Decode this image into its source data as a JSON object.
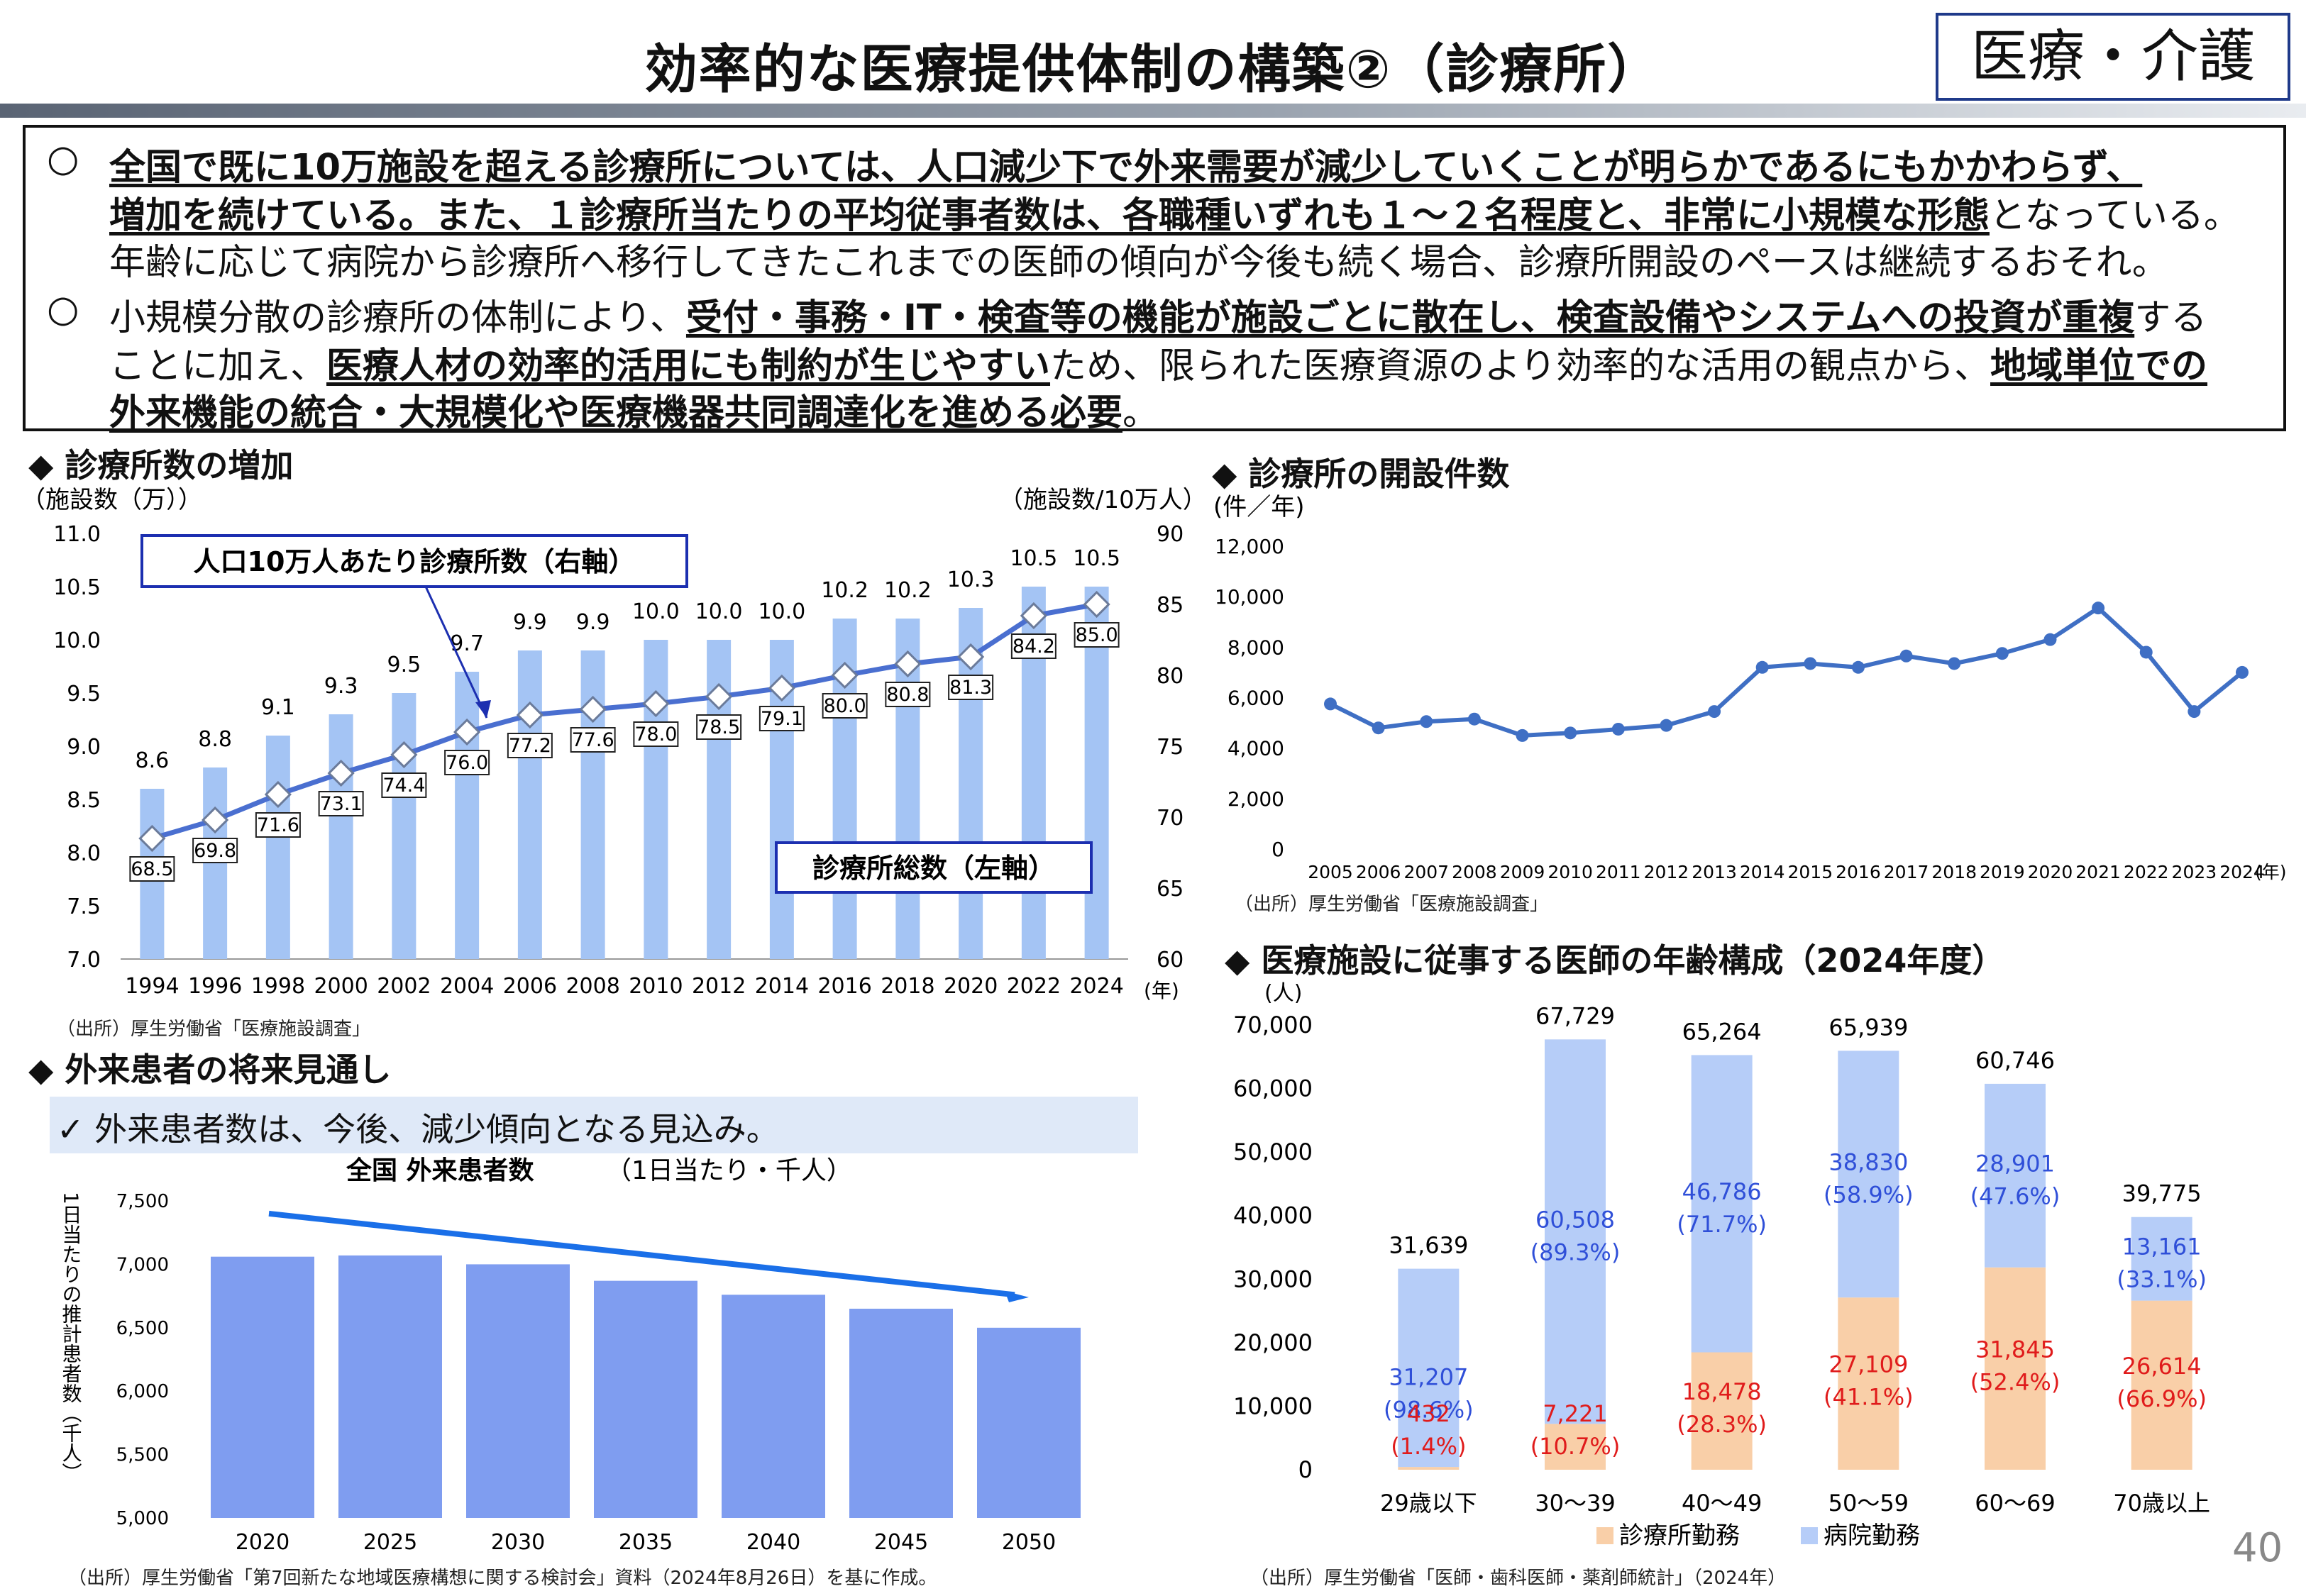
{
  "header": {
    "title": "効率的な医療提供体制の構築②（診療所）",
    "category": "医療・介護",
    "page_number": "40"
  },
  "summary": {
    "p1": {
      "bullet": "○",
      "l1": "全国で既に10万施設を超える診療所については、人口減少下で外来需要が減少していくことが明らかであるにもかかわらず、",
      "l2_bold": "増加を続けている。また、１診療所当たりの平均従事者数は、各職種いずれも１～２名程度と、非常に小規模な形態",
      "l2_rest": "となっている。",
      "l3": "年齢に応じて病院から診療所へ移行してきたこれまでの医師の傾向が今後も続く場合、診療所開設のペースは継続するおそれ。"
    },
    "p2": {
      "bullet": "○",
      "l1_a": "小規模分散の診療所の体制により、",
      "l1_b": "受付・事務・IT・検査等の機能が施設ごとに散在し、検査設備やシステムへの投資が重複",
      "l1_c": "する",
      "l2_a": "ことに加え、",
      "l2_b": "医療人材の効率的活用にも制約が生じやすい",
      "l2_c": "ため、限られた医療資源のより効率的な活用の観点から、",
      "l2_d": "地域単位での",
      "l3_b": "外来機能の統合・大規模化や医療機器共同調達化を進める必要",
      "l3_c": "。"
    }
  },
  "clinics_chart": {
    "section_title": "◆ 診療所数の増加",
    "left_axis_unit": "（施設数（万））",
    "right_axis_unit": "（施設数/10万人）",
    "x_unit": "(年)",
    "line_callout": "人口10万人あたり診療所数（右軸）",
    "bar_callout": "診療所総数（左軸）",
    "source": "（出所）厚生労働省「医療施設調査」",
    "left_ticks": [
      "11.0",
      "10.5",
      "10.0",
      "9.5",
      "9.0",
      "8.5",
      "8.0",
      "7.5",
      "7.0"
    ],
    "right_ticks": [
      "90",
      "85",
      "80",
      "75",
      "70",
      "65",
      "60"
    ]
  },
  "openings_chart": {
    "section_title": "◆ 診療所の開設件数",
    "y_unit": "(件／年)",
    "x_unit": "(年)",
    "source": "（出所）厚生労働省「医療施設調査」",
    "y_ticks": [
      "12,000",
      "10,000",
      "8,000",
      "6,000",
      "4,000",
      "2,000",
      "0"
    ]
  },
  "outpatient_chart": {
    "section_title": "◆ 外来患者の将来見通し",
    "note": "✓ 外来患者数は、今後、減少傾向となる見込み。",
    "chart_title_a": "全国 外来患者数",
    "chart_title_b": "（1日当たり・千人）",
    "y_label": "1日当たりの推計患者数（千人）",
    "source": "（出所）厚生労働省「第7回新たな地域医療構想に関する検討会」資料（2024年8月26日）を基に作成。",
    "y_ticks": [
      "7,500",
      "7,000",
      "6,500",
      "6,000",
      "5,500",
      "5,000"
    ]
  },
  "doctors_chart": {
    "section_title": "◆ 医療施設に従事する医師の年齢構成（2024年度）",
    "y_unit": "(人)",
    "legend_clinic": "診療所勤務",
    "legend_hospital": "病院勤務",
    "source": "（出所）厚生労働省「医師・歯科医師・薬剤師統計」（2024年）",
    "y_ticks": [
      "70,000",
      "60,000",
      "50,000",
      "40,000",
      "30,000",
      "20,000",
      "10,000",
      "0"
    ]
  },
  "chart_data": [
    {
      "type": "bar",
      "title": "診療所数の増加",
      "categories": [
        "1994",
        "1996",
        "1998",
        "2000",
        "2002",
        "2004",
        "2006",
        "2008",
        "2010",
        "2012",
        "2014",
        "2016",
        "2018",
        "2020",
        "2022",
        "2024"
      ],
      "series": [
        {
          "name": "診療所総数（左軸）",
          "axis": "left",
          "values": [
            8.6,
            8.8,
            9.1,
            9.3,
            9.5,
            9.7,
            9.9,
            9.9,
            10.0,
            10.0,
            10.0,
            10.2,
            10.2,
            10.3,
            10.5,
            10.5
          ],
          "color": "#a4c4f4"
        },
        {
          "name": "人口10万人あたり診療所数（右軸）",
          "axis": "right",
          "type": "line",
          "values": [
            68.5,
            69.8,
            71.6,
            73.1,
            74.4,
            76.0,
            77.2,
            77.6,
            78.0,
            78.5,
            79.1,
            80.0,
            80.8,
            81.3,
            84.2,
            85.0
          ],
          "color": "#4a6fd0"
        }
      ],
      "ylim_left": [
        7.0,
        11.0
      ],
      "ylim_right": [
        60,
        90
      ]
    },
    {
      "type": "line",
      "title": "診療所の開設件数",
      "x": [
        "2005",
        "2006",
        "2007",
        "2008",
        "2009",
        "2010",
        "2011",
        "2012",
        "2013",
        "2014",
        "2015",
        "2016",
        "2017",
        "2018",
        "2019",
        "2020",
        "2021",
        "2022",
        "2023",
        "2024"
      ],
      "values": [
        5750,
        4800,
        5050,
        5150,
        4500,
        4600,
        4750,
        4900,
        5450,
        7200,
        7350,
        7200,
        7650,
        7350,
        7750,
        8300,
        9550,
        7800,
        5450,
        7000
      ],
      "ylim": [
        0,
        12000
      ],
      "color": "#3f6fc4"
    },
    {
      "type": "bar",
      "title": "全国 外来患者数",
      "categories": [
        "2020",
        "2025",
        "2030",
        "2035",
        "2040",
        "2045",
        "2050"
      ],
      "values": [
        7060,
        7070,
        7000,
        6870,
        6760,
        6650,
        6500
      ],
      "ylim": [
        5000,
        7500
      ],
      "color": "#7f9df0",
      "trend_arrow": true
    },
    {
      "type": "bar",
      "stacked": true,
      "title": "医療施設に従事する医師の年齢構成（2024年度）",
      "categories": [
        "29歳以下",
        "30～39",
        "40～49",
        "50～59",
        "60～69",
        "70歳以上"
      ],
      "totals": [
        "31,639",
        "67,729",
        "65,264",
        "65,939",
        "60,746",
        "39,775"
      ],
      "series": [
        {
          "name": "診療所勤務",
          "values": [
            432,
            7221,
            18478,
            27109,
            31845,
            26614
          ],
          "labels": [
            "432",
            "7,221",
            "18,478",
            "27,109",
            "31,845",
            "26,614"
          ],
          "pct": [
            "(1.4%)",
            "(10.7%)",
            "(28.3%)",
            "(41.1%)",
            "(52.4%)",
            "(66.9%)"
          ],
          "color": "#f9cfa8",
          "label_color": "#e01b1b"
        },
        {
          "name": "病院勤務",
          "values": [
            31207,
            60508,
            46786,
            38830,
            28901,
            13161
          ],
          "labels": [
            "31,207",
            "60,508",
            "46,786",
            "38,830",
            "28,901",
            "13,161"
          ],
          "pct": [
            "(98.6%)",
            "(89.3%)",
            "(71.7%)",
            "(58.9%)",
            "(47.6%)",
            "(33.1%)"
          ],
          "color": "#b6cdf8",
          "label_color": "#2f4fd8"
        }
      ],
      "ylim": [
        0,
        70000
      ]
    }
  ]
}
